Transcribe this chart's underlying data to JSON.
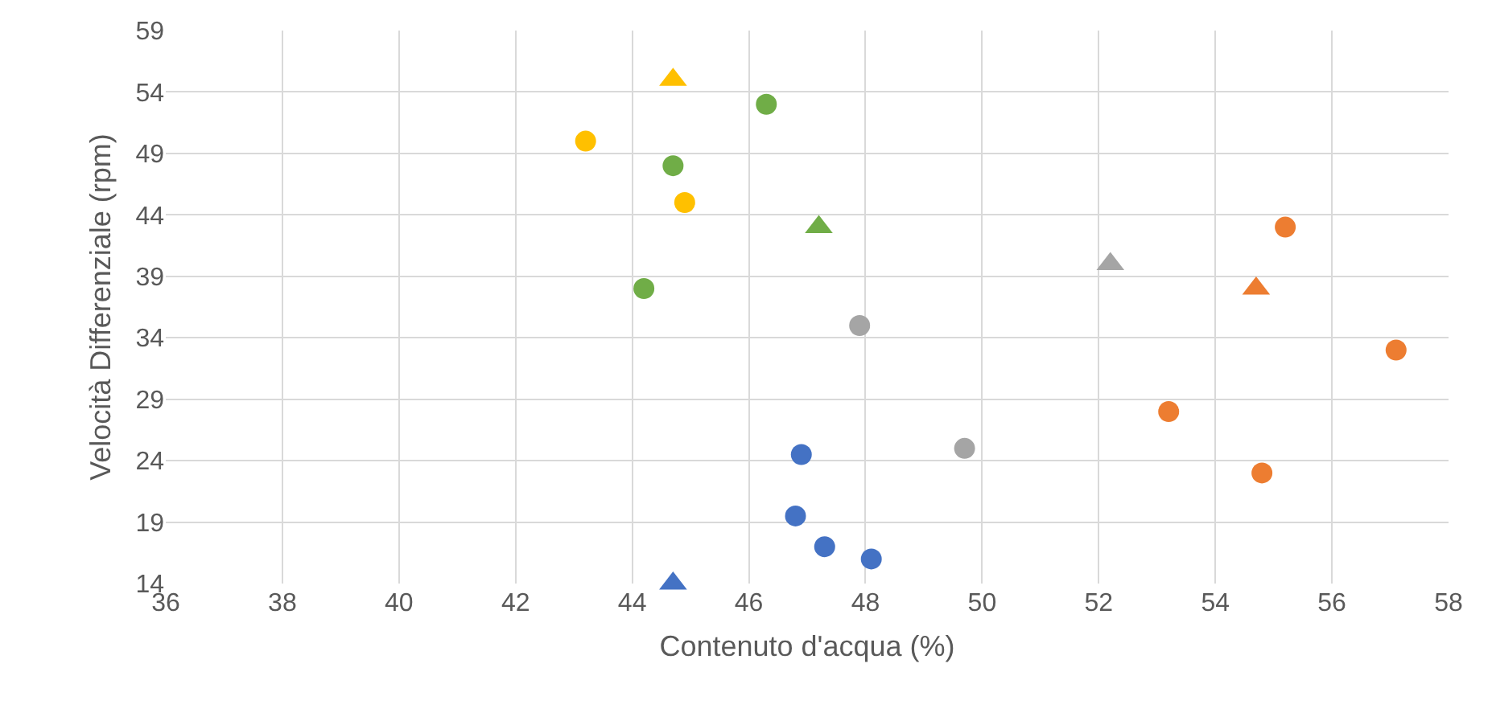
{
  "chart_data": {
    "type": "scatter",
    "xlabel": "Contenuto d'acqua (%)",
    "ylabel": "Velocità Differenziale (rpm)",
    "xlim": [
      36,
      58
    ],
    "xticks": [
      36,
      38,
      40,
      42,
      44,
      46,
      48,
      50,
      52,
      54,
      56,
      58
    ],
    "ylim": [
      14,
      59
    ],
    "yticks": [
      14,
      19,
      24,
      29,
      34,
      39,
      44,
      49,
      54,
      59
    ],
    "grid": true,
    "series": [
      {
        "color": "#4472c4",
        "marker": "circle",
        "x": [
          46.9,
          46.8,
          47.3,
          48.1
        ],
        "values": [
          24.5,
          19.5,
          17,
          16
        ]
      },
      {
        "color": "#4472c4",
        "marker": "triangle",
        "x": [
          44.7
        ],
        "values": [
          14
        ]
      },
      {
        "color": "#ed7d31",
        "marker": "circle",
        "x": [
          55.2,
          57.1,
          53.2,
          54.8
        ],
        "values": [
          43,
          33,
          28,
          23
        ]
      },
      {
        "color": "#ed7d31",
        "marker": "triangle",
        "x": [
          54.7
        ],
        "values": [
          38
        ]
      },
      {
        "color": "#a5a5a5",
        "marker": "circle",
        "x": [
          47.9,
          49.7
        ],
        "values": [
          35,
          25
        ]
      },
      {
        "color": "#a5a5a5",
        "marker": "triangle",
        "x": [
          52.2
        ],
        "values": [
          40
        ]
      },
      {
        "color": "#ffc000",
        "marker": "circle",
        "x": [
          43.2,
          44.9
        ],
        "values": [
          50,
          45
        ]
      },
      {
        "color": "#ffc000",
        "marker": "triangle",
        "x": [
          44.7
        ],
        "values": [
          55
        ]
      },
      {
        "color": "#70ad47",
        "marker": "circle",
        "x": [
          46.3,
          44.7,
          44.2
        ],
        "values": [
          53,
          48,
          38
        ]
      },
      {
        "color": "#70ad47",
        "marker": "triangle",
        "x": [
          47.2
        ],
        "values": [
          43
        ]
      }
    ]
  }
}
